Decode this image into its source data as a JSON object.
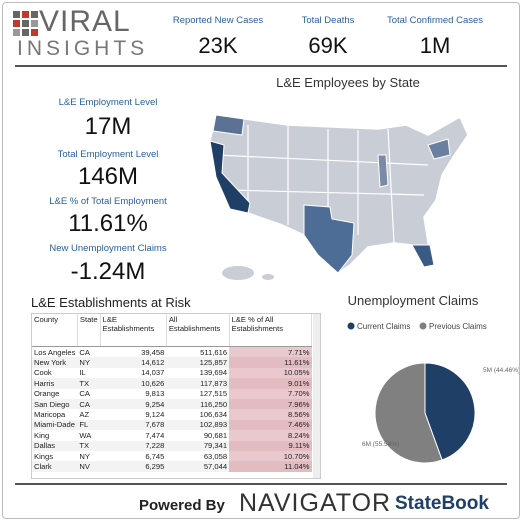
{
  "header": {
    "logo_top": "VIRAL",
    "logo_bottom": "INSIGHTS",
    "kpis": [
      {
        "label": "Reported New Cases",
        "value": "23K"
      },
      {
        "label": "Total Deaths",
        "value": "69K"
      },
      {
        "label": "Total Confirmed Cases",
        "value": "1M"
      }
    ]
  },
  "left_kpis": [
    {
      "label": "L&E Employment Level",
      "value": "17M"
    },
    {
      "label": "Total Employment Level",
      "value": "146M"
    },
    {
      "label": "L&E % of Total Employment",
      "value": "11.61%"
    },
    {
      "label": "New Unemployment Claims",
      "value": "-1.24M"
    }
  ],
  "map": {
    "title": "L&E Employees by State"
  },
  "table": {
    "title": "L&E Establishments at Risk",
    "columns": [
      "County",
      "State",
      "L&E Establishments",
      "All Establishments",
      "L&E % of All Establishments"
    ],
    "rows": [
      [
        "Los Angeles",
        "CA",
        "39,458",
        "511,616",
        "7.71%"
      ],
      [
        "New York",
        "NY",
        "14,612",
        "125,857",
        "11.61%"
      ],
      [
        "Cook",
        "IL",
        "14,037",
        "139,694",
        "10.05%"
      ],
      [
        "Harris",
        "TX",
        "10,626",
        "117,873",
        "9.01%"
      ],
      [
        "Orange",
        "CA",
        "9,813",
        "127,515",
        "7.70%"
      ],
      [
        "San Diego",
        "CA",
        "9,254",
        "116,250",
        "7.96%"
      ],
      [
        "Maricopa",
        "AZ",
        "9,124",
        "106,634",
        "8.56%"
      ],
      [
        "Miami-Dade",
        "FL",
        "7,678",
        "102,893",
        "7.46%"
      ],
      [
        "King",
        "WA",
        "7,474",
        "90,681",
        "8.24%"
      ],
      [
        "Dallas",
        "TX",
        "7,228",
        "79,341",
        "9.11%"
      ],
      [
        "Kings",
        "NY",
        "6,745",
        "63,058",
        "10.70%"
      ],
      [
        "Clark",
        "NV",
        "6,295",
        "57,044",
        "11.04%"
      ]
    ]
  },
  "chart_data": {
    "type": "pie",
    "title": "Unemployment Claims",
    "categories": [
      "Current Claims",
      "Previous Claims"
    ],
    "values": [
      44.46,
      55.54
    ],
    "value_labels": [
      "5M (44.46%)",
      "6M (55.54%)"
    ],
    "colors": [
      "#1f3f66",
      "#808080"
    ]
  },
  "footer": {
    "powered_by": "Powered By",
    "navigator": "NAVIGATOR",
    "statebook": "StateBook"
  }
}
